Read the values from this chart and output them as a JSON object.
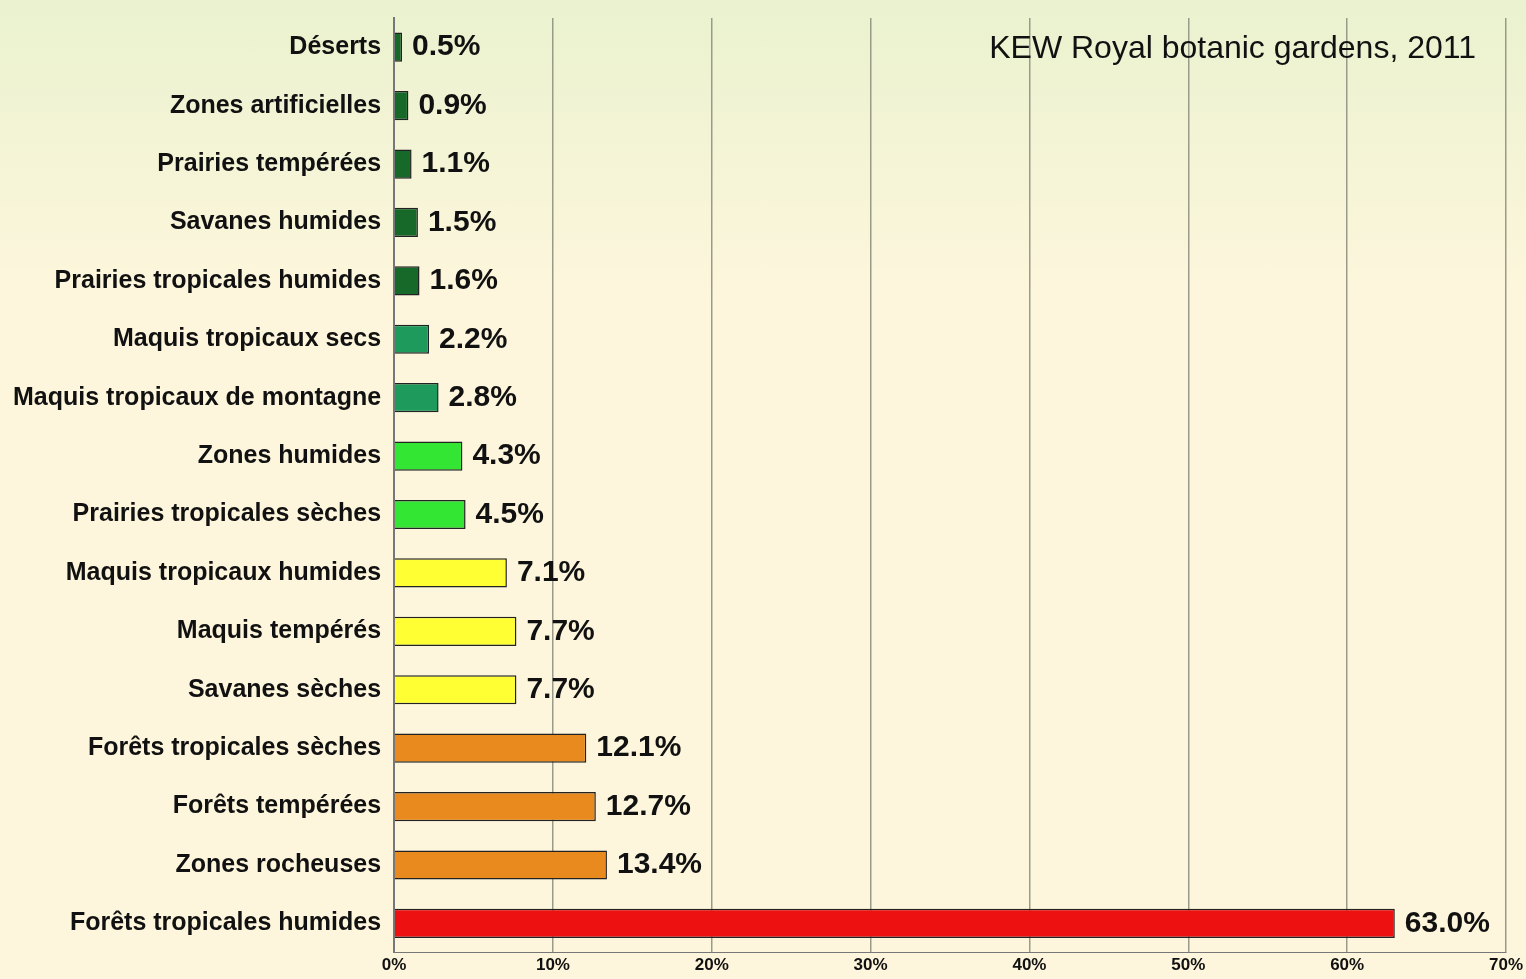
{
  "chart_data": {
    "type": "bar",
    "orientation": "horizontal",
    "categories": [
      "Déserts",
      "Zones artificielles",
      "Prairies tempérées",
      "Savanes humides",
      "Prairies tropicales humides",
      "Maquis tropicaux secs",
      "Maquis tropicaux de montagne",
      "Zones humides",
      "Prairies tropicales sèches",
      "Maquis tropicaux humides",
      "Maquis tempérés",
      "Savanes sèches",
      "Forêts tropicales sèches",
      "Forêts tempérées",
      "Zones rocheuses",
      "Forêts tropicales humides"
    ],
    "values": [
      0.5,
      0.9,
      1.1,
      1.5,
      1.6,
      2.2,
      2.8,
      4.3,
      4.5,
      7.1,
      7.7,
      7.7,
      12.1,
      12.7,
      13.4,
      63.0
    ],
    "value_labels": [
      "0.5%",
      "0.9%",
      "1.1%",
      "1.5%",
      "1.6%",
      "2.2%",
      "2.8%",
      "4.3%",
      "4.5%",
      "7.1%",
      "7.7%",
      "7.7%",
      "12.1%",
      "12.7%",
      "13.4%",
      "63.0%"
    ],
    "colors": [
      "#17692a",
      "#17692a",
      "#17692a",
      "#17692a",
      "#17692a",
      "#1d9a5c",
      "#1d9a5c",
      "#33e633",
      "#33e633",
      "#ffff33",
      "#ffff33",
      "#ffff33",
      "#e88a1e",
      "#e88a1e",
      "#e88a1e",
      "#ee1111"
    ],
    "xlim": [
      0,
      70
    ],
    "xticks": [
      {
        "value": 0,
        "label": "0%"
      },
      {
        "value": 10,
        "label": "10%"
      },
      {
        "value": 20,
        "label": "20%"
      },
      {
        "value": 30,
        "label": "30%"
      },
      {
        "value": 40,
        "label": "40%"
      },
      {
        "value": 50,
        "label": "50%"
      },
      {
        "value": 60,
        "label": "60%"
      },
      {
        "value": 70,
        "label": "70%"
      }
    ],
    "grid": "x",
    "legend": false,
    "annotations": [
      "KEW Royal botanic gardens, 2011"
    ]
  }
}
